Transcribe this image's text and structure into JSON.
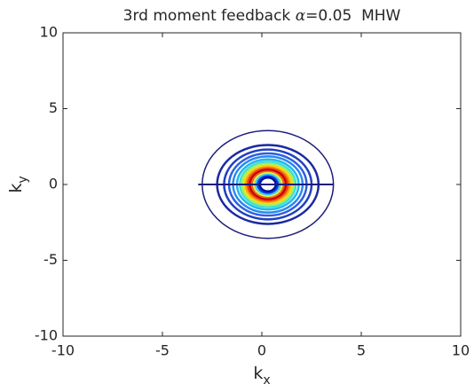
{
  "chart_data": {
    "type": "contour",
    "title": {
      "text": "3rd moment feedback ",
      "symbol": "α",
      "rest": "=0.05  MHW"
    },
    "xlabel": {
      "text": "k",
      "subscript": "x"
    },
    "ylabel": {
      "text": "k",
      "subscript": "y"
    },
    "xlim": [
      -10,
      10
    ],
    "ylim": [
      -10,
      10
    ],
    "xticks": [
      -10,
      -5,
      0,
      5,
      10
    ],
    "yticks": [
      -10,
      -5,
      0,
      5,
      10
    ],
    "contours": [
      {
        "cx": 0.3,
        "cy": 0,
        "rx": 3.3,
        "ry": 3.55,
        "color": "#1c1c7a"
      },
      {
        "cx": 0.3,
        "cy": 0,
        "rx": 2.55,
        "ry": 2.6,
        "color": "#1a2aa0"
      },
      {
        "cx": 0.3,
        "cy": 0,
        "rx": 2.2,
        "ry": 2.3,
        "color": "#2040c0"
      },
      {
        "cx": 0.3,
        "cy": 0,
        "rx": 1.95,
        "ry": 2.05,
        "color": "#2f5fe0"
      },
      {
        "cx": 0.3,
        "cy": 0,
        "rx": 1.75,
        "ry": 1.85,
        "color": "#2a8af0"
      },
      {
        "cx": 0.3,
        "cy": 0,
        "rx": 1.55,
        "ry": 1.65,
        "color": "#20b8f0"
      },
      {
        "cx": 0.3,
        "cy": 0,
        "rx": 1.4,
        "ry": 1.5,
        "color": "#40e0d0"
      },
      {
        "cx": 0.3,
        "cy": 0,
        "rx": 1.3,
        "ry": 1.35,
        "color": "#a0f060"
      },
      {
        "cx": 0.3,
        "cy": 0,
        "rx": 1.2,
        "ry": 1.25,
        "color": "#f0e020"
      },
      {
        "cx": 0.3,
        "cy": 0,
        "rx": 1.1,
        "ry": 1.15,
        "color": "#f8a010"
      },
      {
        "cx": 0.3,
        "cy": 0,
        "rx": 1.0,
        "ry": 1.05,
        "color": "#f04010"
      },
      {
        "cx": 0.3,
        "cy": 0,
        "rx": 0.9,
        "ry": 0.95,
        "color": "#c00000"
      },
      {
        "cx": 0.3,
        "cy": 0,
        "rx": 0.8,
        "ry": 0.85,
        "color": "#f06020"
      },
      {
        "cx": 0.3,
        "cy": 0,
        "rx": 0.7,
        "ry": 0.75,
        "color": "#e0f040"
      },
      {
        "cx": 0.3,
        "cy": 0,
        "rx": 0.6,
        "ry": 0.65,
        "color": "#40d0f0"
      },
      {
        "cx": 0.3,
        "cy": 0,
        "rx": 0.5,
        "ry": 0.55,
        "color": "#1040e0"
      },
      {
        "cx": 0.3,
        "cy": 0,
        "rx": 0.4,
        "ry": 0.45,
        "color": "#0010a0"
      }
    ],
    "segment": {
      "x": [
        -3.2,
        3.6
      ],
      "y": [
        0,
        0
      ],
      "color": "#1c1c7a"
    }
  }
}
